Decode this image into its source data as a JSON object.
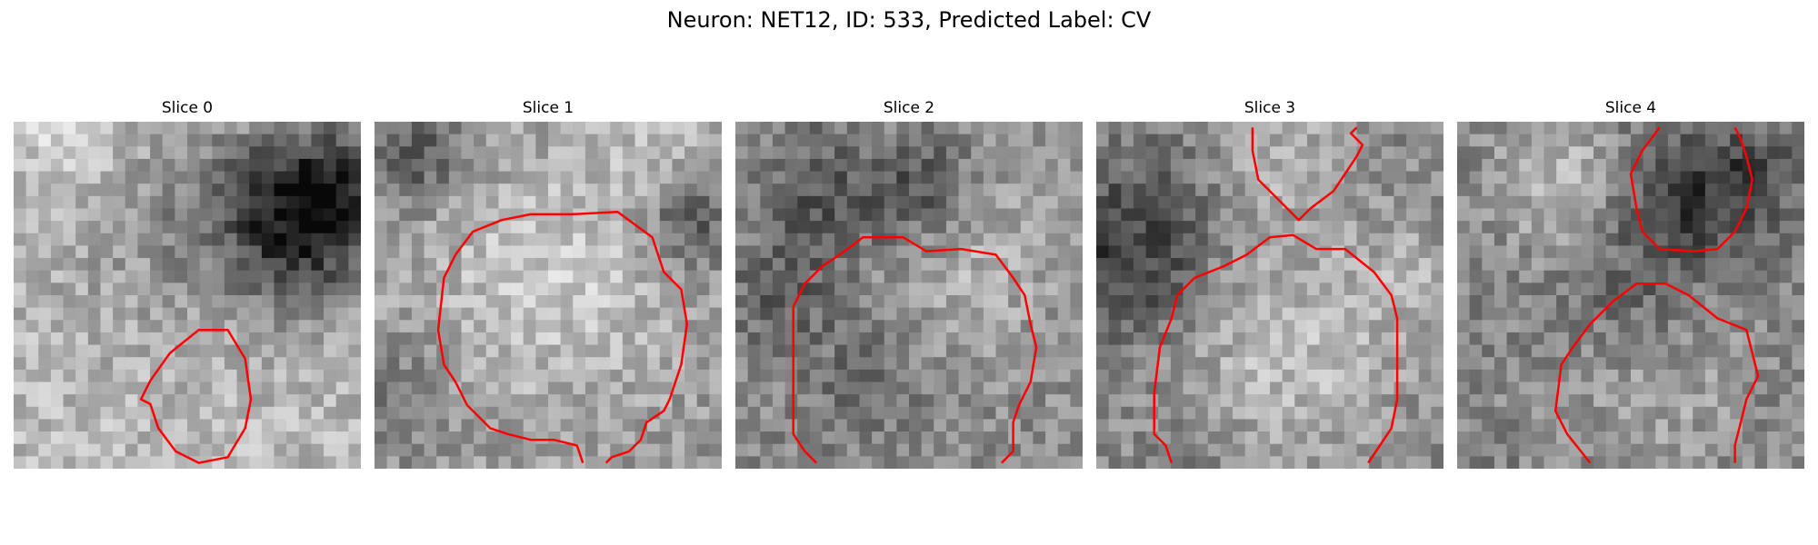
{
  "figure": {
    "title": "Neuron: NET12, ID: 533, Predicted Label: CV"
  },
  "panels": [
    {
      "title": "Slice 0"
    },
    {
      "title": "Slice 1"
    },
    {
      "title": "Slice 2"
    },
    {
      "title": "Slice 3"
    },
    {
      "title": "Slice 4"
    }
  ],
  "colors": {
    "contour": "#ff0000",
    "colormap": "grayscale"
  }
}
